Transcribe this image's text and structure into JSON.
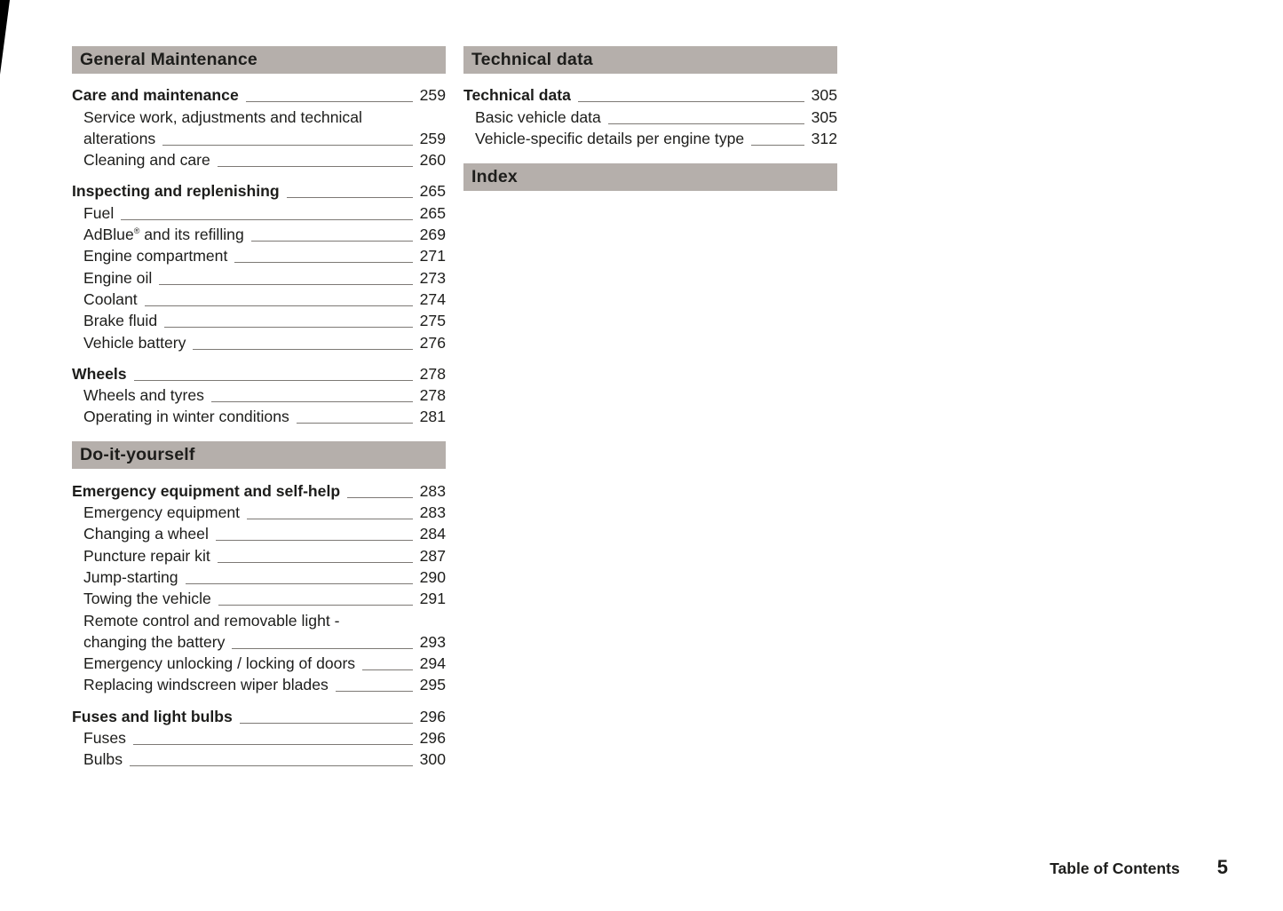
{
  "colors": {
    "section_bar_background": "#b5afab",
    "text": "#1d1d1b",
    "leader_line": "#7d7975",
    "page_background": "#ffffff"
  },
  "footer": {
    "label": "Table of Contents",
    "page_number": "5"
  },
  "columns": [
    {
      "sections": [
        {
          "type": "header",
          "title": "General Maintenance"
        },
        {
          "type": "group",
          "entries": [
            {
              "level": 1,
              "lines": [
                "Care and maintenance"
              ],
              "page": "259"
            },
            {
              "level": 2,
              "lines": [
                "Service work, adjustments and technical",
                "alterations"
              ],
              "page": "259"
            },
            {
              "level": 2,
              "lines": [
                "Cleaning and care"
              ],
              "page": "260"
            }
          ]
        },
        {
          "type": "group",
          "entries": [
            {
              "level": 1,
              "lines": [
                "Inspecting and replenishing"
              ],
              "page": "265"
            },
            {
              "level": 2,
              "lines": [
                "Fuel"
              ],
              "page": "265"
            },
            {
              "level": 2,
              "lines": [
                "AdBlue® and its refilling"
              ],
              "page": "269"
            },
            {
              "level": 2,
              "lines": [
                "Engine compartment"
              ],
              "page": "271"
            },
            {
              "level": 2,
              "lines": [
                "Engine oil"
              ],
              "page": "273"
            },
            {
              "level": 2,
              "lines": [
                "Coolant"
              ],
              "page": "274"
            },
            {
              "level": 2,
              "lines": [
                "Brake fluid"
              ],
              "page": "275"
            },
            {
              "level": 2,
              "lines": [
                "Vehicle battery"
              ],
              "page": "276"
            }
          ]
        },
        {
          "type": "group",
          "entries": [
            {
              "level": 1,
              "lines": [
                "Wheels"
              ],
              "page": "278"
            },
            {
              "level": 2,
              "lines": [
                "Wheels and tyres"
              ],
              "page": "278"
            },
            {
              "level": 2,
              "lines": [
                "Operating in winter conditions"
              ],
              "page": "281"
            }
          ]
        },
        {
          "type": "header",
          "title": "Do-it-yourself"
        },
        {
          "type": "group",
          "entries": [
            {
              "level": 1,
              "lines": [
                "Emergency equipment and self-help"
              ],
              "page": "283"
            },
            {
              "level": 2,
              "lines": [
                "Emergency equipment"
              ],
              "page": "283"
            },
            {
              "level": 2,
              "lines": [
                "Changing a wheel"
              ],
              "page": "284"
            },
            {
              "level": 2,
              "lines": [
                "Puncture repair kit"
              ],
              "page": "287"
            },
            {
              "level": 2,
              "lines": [
                "Jump-starting"
              ],
              "page": "290"
            },
            {
              "level": 2,
              "lines": [
                "Towing the vehicle"
              ],
              "page": "291"
            },
            {
              "level": 2,
              "lines": [
                "Remote control and removable light -",
                "changing the battery"
              ],
              "page": "293"
            },
            {
              "level": 2,
              "lines": [
                "Emergency unlocking / locking of doors"
              ],
              "page": "294"
            },
            {
              "level": 2,
              "lines": [
                "Replacing windscreen wiper blades"
              ],
              "page": "295"
            }
          ]
        },
        {
          "type": "group",
          "entries": [
            {
              "level": 1,
              "lines": [
                "Fuses and light bulbs"
              ],
              "page": "296"
            },
            {
              "level": 2,
              "lines": [
                "Fuses"
              ],
              "page": "296"
            },
            {
              "level": 2,
              "lines": [
                "Bulbs"
              ],
              "page": "300"
            }
          ]
        }
      ]
    },
    {
      "sections": [
        {
          "type": "header",
          "title": "Technical data"
        },
        {
          "type": "group",
          "entries": [
            {
              "level": 1,
              "lines": [
                "Technical data"
              ],
              "page": "305"
            },
            {
              "level": 2,
              "lines": [
                "Basic vehicle data"
              ],
              "page": "305"
            },
            {
              "level": 2,
              "lines": [
                "Vehicle-specific details per engine type"
              ],
              "page": "312"
            }
          ]
        },
        {
          "type": "header",
          "title": "Index"
        }
      ]
    }
  ]
}
